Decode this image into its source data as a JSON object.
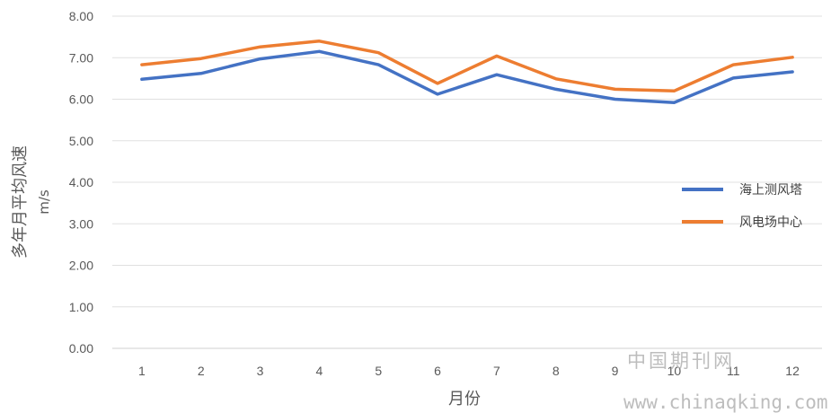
{
  "chart_data": {
    "type": "line",
    "categories": [
      "1",
      "2",
      "3",
      "4",
      "5",
      "6",
      "7",
      "8",
      "9",
      "10",
      "11",
      "12"
    ],
    "series": [
      {
        "name": "海上测风塔",
        "color": "#4472C4",
        "values": [
          6.48,
          6.62,
          6.97,
          7.15,
          6.83,
          6.12,
          6.59,
          6.24,
          6.0,
          5.92,
          6.51,
          6.66
        ]
      },
      {
        "name": "风电场中心",
        "color": "#ED7D31",
        "values": [
          6.83,
          6.98,
          7.26,
          7.4,
          7.12,
          6.38,
          7.04,
          6.49,
          6.24,
          6.2,
          6.83,
          7.01
        ]
      }
    ],
    "y_ticks": [
      "0.00",
      "1.00",
      "2.00",
      "3.00",
      "4.00",
      "5.00",
      "6.00",
      "7.00",
      "8.00"
    ],
    "ylim": [
      0,
      8
    ],
    "xlabel": "月份",
    "ylabel": "多年月平均风速",
    "ylabel_unit": "m/s",
    "grid": true,
    "legend_position": "right"
  },
  "watermark": {
    "line1": "中国期刊网",
    "line2": "www.chinaqking.com"
  }
}
